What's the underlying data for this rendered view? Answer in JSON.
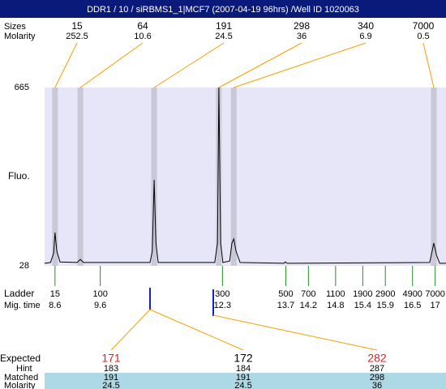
{
  "chart_data": {
    "type": "electropherogram",
    "title": "DDR1 / 10 / siRBMS1_1|MCF7 (2007-04-19 96hrs) /Well ID 1020063",
    "xlim": [
      8.37,
      17.24
    ],
    "ylim": [
      28,
      665
    ],
    "yticks": [
      28,
      665
    ],
    "y_label": "Fluo.",
    "plot_color": "#e6e6f8",
    "band_color": "#c8c8d6",
    "trace_color": "#000000",
    "trace": {
      "x": [
        8.37,
        8.5,
        8.57,
        8.6,
        8.64,
        8.71,
        9.09,
        9.16,
        9.23,
        10.7,
        10.75,
        10.79,
        10.83,
        10.88,
        12.13,
        12.19,
        12.22,
        12.26,
        12.31,
        12.46,
        12.51,
        12.55,
        12.6,
        12.69,
        13.66,
        13.69,
        13.73,
        16.88,
        16.94,
        16.97,
        17.03,
        17.1,
        17.24
      ],
      "values": [
        37,
        40,
        74,
        147,
        80,
        42,
        40,
        51,
        40,
        40,
        80,
        335,
        109,
        40,
        40,
        109,
        665,
        109,
        40,
        45,
        109,
        124,
        80,
        40,
        37,
        42,
        37,
        40,
        86,
        109,
        66,
        37,
        37
      ]
    },
    "peaks": {
      "row_labels": [
        "Sizes",
        "Molarity"
      ],
      "sizes": [
        15,
        64,
        191,
        298,
        340,
        7000
      ],
      "molarity": [
        252.5,
        10.6,
        24.5,
        36,
        6.9,
        0.5
      ],
      "mig_time": [
        8.6,
        9.16,
        10.79,
        12.22,
        12.55,
        16.97
      ]
    },
    "ladder": {
      "label": "Ladder",
      "time_label": "Mig. time",
      "sizes": [
        15,
        100,
        300,
        500,
        700,
        1100,
        1900,
        2900,
        4900,
        7000
      ],
      "mig_time": [
        8.6,
        9.6,
        12.3,
        13.7,
        14.2,
        14.8,
        15.4,
        15.9,
        16.5,
        17
      ]
    },
    "table": {
      "row_labels": [
        "Expected",
        "Hint",
        "Matched",
        "Molarity"
      ],
      "expected": [
        171,
        172,
        282
      ],
      "expected_colors": [
        "#e02020",
        "#000000",
        "#e02020"
      ],
      "hint": [
        183,
        184,
        287
      ],
      "matched": [
        191,
        191,
        298
      ],
      "molarity": [
        24.5,
        24.5,
        36
      ]
    }
  }
}
